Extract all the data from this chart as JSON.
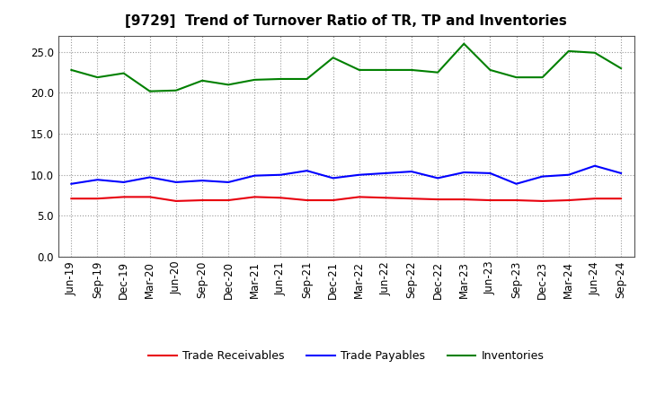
{
  "title": "[9729]  Trend of Turnover Ratio of TR, TP and Inventories",
  "x_labels": [
    "Jun-19",
    "Sep-19",
    "Dec-19",
    "Mar-20",
    "Jun-20",
    "Sep-20",
    "Dec-20",
    "Mar-21",
    "Jun-21",
    "Sep-21",
    "Dec-21",
    "Mar-22",
    "Jun-22",
    "Sep-22",
    "Dec-22",
    "Mar-23",
    "Jun-23",
    "Sep-23",
    "Dec-23",
    "Mar-24",
    "Jun-24",
    "Sep-24"
  ],
  "trade_receivables": [
    7.1,
    7.1,
    7.3,
    7.3,
    6.8,
    6.9,
    6.9,
    7.3,
    7.2,
    6.9,
    6.9,
    7.3,
    7.2,
    7.1,
    7.0,
    7.0,
    6.9,
    6.9,
    6.8,
    6.9,
    7.1,
    7.1
  ],
  "trade_payables": [
    8.9,
    9.4,
    9.1,
    9.7,
    9.1,
    9.3,
    9.1,
    9.9,
    10.0,
    10.5,
    9.6,
    10.0,
    10.2,
    10.4,
    9.6,
    10.3,
    10.2,
    8.9,
    9.8,
    10.0,
    11.1,
    10.2
  ],
  "inventories": [
    22.8,
    21.9,
    22.4,
    20.2,
    20.3,
    21.5,
    21.0,
    21.6,
    21.7,
    21.7,
    24.3,
    22.8,
    22.8,
    22.8,
    22.5,
    26.0,
    22.8,
    21.9,
    21.9,
    25.1,
    24.9,
    23.0
  ],
  "ylim": [
    0,
    27
  ],
  "yticks": [
    0.0,
    5.0,
    10.0,
    15.0,
    20.0,
    25.0
  ],
  "color_tr": "#e8000d",
  "color_tp": "#0000ff",
  "color_inv": "#008000",
  "background_color": "#ffffff",
  "plot_bg_color": "#ffffff",
  "grid_color": "#999999",
  "legend_labels": [
    "Trade Receivables",
    "Trade Payables",
    "Inventories"
  ],
  "title_fontsize": 11,
  "tick_fontsize": 8.5,
  "legend_fontsize": 9
}
